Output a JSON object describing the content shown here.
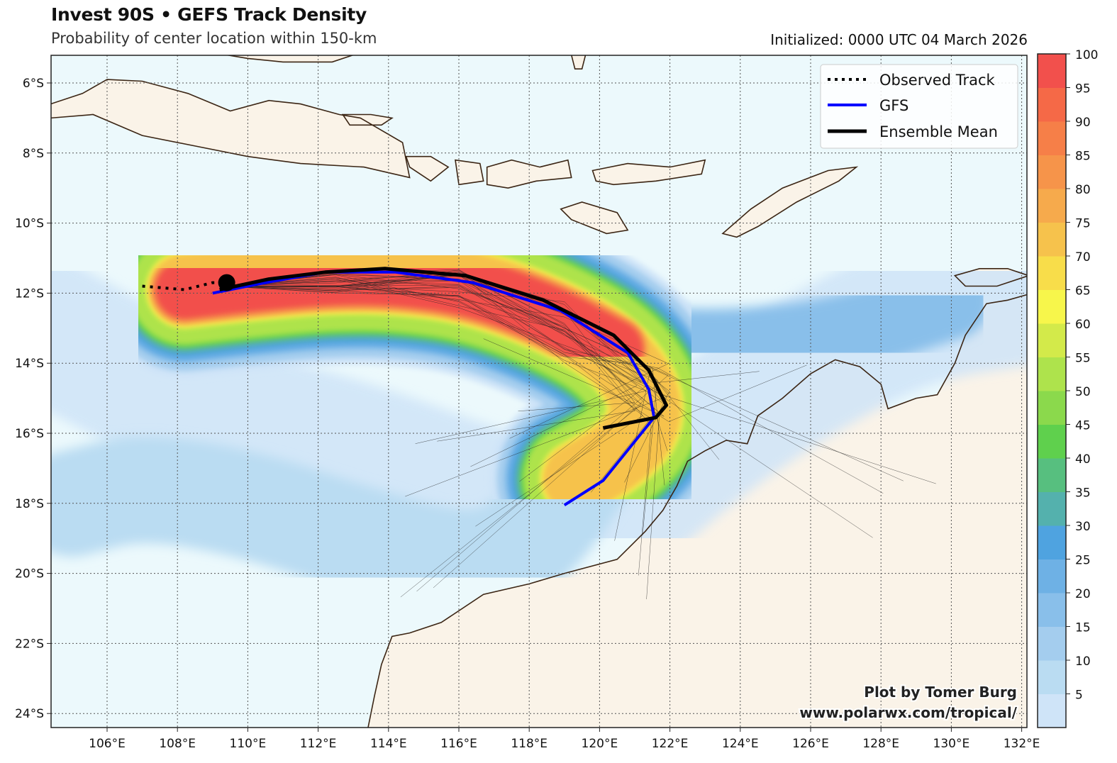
{
  "header": {
    "title": "Invest 90S • GEFS Track Density",
    "subtitle": "Probability of center location within 150-km",
    "initialized": "Initialized: 0000 UTC 04 March 2026"
  },
  "chart_data": {
    "type": "map-density",
    "title": "Invest 90S • GEFS Track Density",
    "subtitle": "Probability of center location within 150-km",
    "lon_range": [
      104.4,
      132.1
    ],
    "lat_range_south": [
      5.2,
      24.4
    ],
    "x_ticks": [
      "106°E",
      "108°E",
      "110°E",
      "112°E",
      "114°E",
      "116°E",
      "118°E",
      "120°E",
      "122°E",
      "124°E",
      "126°E",
      "128°E",
      "130°E",
      "132°E"
    ],
    "y_ticks": [
      "6°S",
      "8°S",
      "10°S",
      "12°S",
      "14°S",
      "16°S",
      "18°S",
      "20°S",
      "22°S",
      "24°S"
    ],
    "grid": true,
    "legend_position": "top-right",
    "legend": [
      "Observed Track",
      "GFS",
      "Ensemble Mean"
    ],
    "colorbar": {
      "ticks": [
        "5",
        "10",
        "15",
        "20",
        "25",
        "30",
        "35",
        "40",
        "45",
        "50",
        "55",
        "60",
        "65",
        "70",
        "75",
        "80",
        "85",
        "90",
        "95",
        "100"
      ],
      "colors": [
        "#cfe4f8",
        "#badcf2",
        "#a4cdee",
        "#89bfea",
        "#6eb1e5",
        "#4fa3e0",
        "#54b1ad",
        "#57bf7f",
        "#5fd04d",
        "#8bd94c",
        "#aee34c",
        "#d3ea4a",
        "#f7f64b",
        "#f8dd4a",
        "#f6c24c",
        "#f6aa4c",
        "#f6944a",
        "#f67f48",
        "#f56947",
        "#f2504c"
      ]
    },
    "observed_track": [
      [
        107.0,
        11.8
      ],
      [
        108.2,
        11.9
      ],
      [
        109.0,
        11.7
      ],
      [
        109.4,
        11.7
      ]
    ],
    "current_position": [
      109.4,
      11.7
    ],
    "gfs_track": [
      [
        109.0,
        12.0
      ],
      [
        110.5,
        11.7
      ],
      [
        112.2,
        11.4
      ],
      [
        114.2,
        11.4
      ],
      [
        116.4,
        11.7
      ],
      [
        118.9,
        12.5
      ],
      [
        120.8,
        13.7
      ],
      [
        121.4,
        14.75
      ],
      [
        121.55,
        15.55
      ],
      [
        120.1,
        17.35
      ],
      [
        119.0,
        18.05
      ]
    ],
    "ensemble_mean_track": [
      [
        109.2,
        11.9
      ],
      [
        110.6,
        11.6
      ],
      [
        112.2,
        11.4
      ],
      [
        113.9,
        11.3
      ],
      [
        116.2,
        11.5
      ],
      [
        118.4,
        12.2
      ],
      [
        120.4,
        13.2
      ],
      [
        121.4,
        14.2
      ],
      [
        121.9,
        15.2
      ],
      [
        121.6,
        15.55
      ],
      [
        120.1,
        15.85
      ]
    ]
  },
  "legend": {
    "observed": "Observed Track",
    "gfs": "GFS",
    "mean": "Ensemble Mean"
  },
  "credit": {
    "line1": "Plot by Tomer Burg",
    "line2": "www.polarwx.com/tropical/"
  },
  "colors": {
    "ocean": "#ecf9fc",
    "land": "#faf3e8",
    "coast": "#3b2514",
    "gfs": "#0000ff",
    "mean": "#000000"
  }
}
